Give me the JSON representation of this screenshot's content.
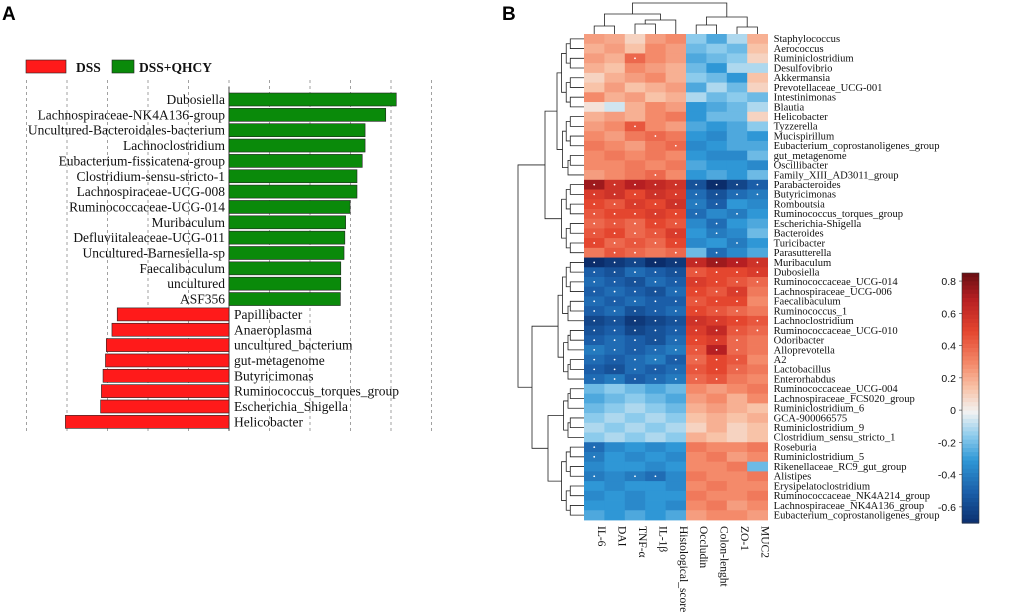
{
  "panels": {
    "a": "A",
    "b": "B"
  },
  "chart_data": [
    {
      "type": "bar",
      "orientation": "horizontal",
      "title": "",
      "legend": [
        {
          "name": "DSS",
          "color": "#ff1a1a"
        },
        {
          "name": "DSS+QHCY",
          "color": "#0a8a0a"
        }
      ],
      "xlim": [
        -4,
        4
      ],
      "categories": [
        "Dubosiella",
        "Lachnospiraceae-NK4A136-group",
        "Uncultured-Bacteroidales-bacterium",
        "Lachnoclostridium",
        "Eubacterium-fissicatena-group",
        "Clostridium-sensu-stricto-1",
        "Lachnospiraceae-UCG-008",
        "Ruminococcaceae-UCG-014",
        "Muribaculum",
        "Defluviitaleaceae-UCG-011",
        "Uncultured-Barnesiella-sp",
        "Faecalibaculum",
        "uncultured",
        "ASF356",
        "Papillibacter",
        "Anaeroplasma",
        "uncultured_bacterium",
        "gut-metagenome",
        "Butyricimonas",
        "Ruminococcus_torques_group",
        "Escherichia_Shigella",
        "Helicobacter"
      ],
      "values": [
        4.13,
        3.87,
        3.36,
        3.36,
        3.29,
        3.16,
        3.16,
        2.99,
        2.88,
        2.86,
        2.84,
        2.76,
        2.76,
        2.75,
        -2.76,
        -2.89,
        -3.03,
        -3.05,
        -3.11,
        -3.15,
        -3.17,
        -4.04
      ],
      "groups": [
        "DSS+QHCY",
        "DSS+QHCY",
        "DSS+QHCY",
        "DSS+QHCY",
        "DSS+QHCY",
        "DSS+QHCY",
        "DSS+QHCY",
        "DSS+QHCY",
        "DSS+QHCY",
        "DSS+QHCY",
        "DSS+QHCY",
        "DSS+QHCY",
        "DSS+QHCY",
        "DSS+QHCY",
        "DSS",
        "DSS",
        "DSS",
        "DSS",
        "DSS",
        "DSS",
        "DSS",
        "DSS"
      ]
    },
    {
      "type": "heatmap",
      "columns": [
        "IL-6",
        "DAI",
        "TNF-α",
        "IL-1β",
        "Histological_score",
        "Occludin",
        "Colon-lenght",
        "ZO-1",
        "MUC2"
      ],
      "rows": [
        "Staphylococcus",
        "Aerococcus",
        "Ruminiclostridium",
        "Desulfovibrio",
        "Akkermansia",
        "Prevotellaceae_UCG-001",
        "Intestinimonas",
        "Blautia",
        "Helicobacter",
        "Tyzzerella",
        "Mucispirillum",
        "Eubacterium_coprostanoligenes_group",
        "gut_metagenome",
        "Oscillibacter",
        "Family_XIII_AD3011_group",
        "Parabacteroides",
        "Butyricimonas",
        "Romboutsia",
        "Ruminococcus_torques_group",
        "Escherichia-Shigella",
        "Bacteroides",
        "Turicibacter",
        "Parasutterella",
        "Muribaculum",
        "Dubosiella",
        "Ruminococcaceae_UCG-014",
        "Lachnospiraceae_UCG-006",
        "Faecalibaculum",
        "Ruminococcus_1",
        "Lachnoclostridium",
        "Ruminococcaceae_UCG-010",
        "Odoribacter",
        "Alloprevotella",
        "A2",
        "Lactobacillus",
        "Enterorhabdus",
        "Ruminococcaceae_UCG-004",
        "Lachnospiraceae_FCS020_group",
        "Ruminiclostridium_6",
        "GCA-900066575",
        "Ruminiclostridium_9",
        "Clostridium_sensu_stricto_1",
        "Roseburia",
        "Ruminiclostridium_5",
        "Rikenellaceae_RC9_gut_group",
        "Alistipes",
        "Erysipelatoclostridium",
        "Ruminococcaceae_NK4A214_group",
        "Lachnospiraceae_NK4A136_group",
        "Eubacterium_coprostanoligenes_group"
      ],
      "values": [
        [
          0.25,
          0.22,
          0.1,
          0.25,
          0.3,
          -0.15,
          -0.25,
          -0.1,
          0.2
        ],
        [
          0.2,
          0.25,
          0.15,
          0.3,
          0.25,
          -0.2,
          -0.15,
          -0.2,
          0.15
        ],
        [
          0.25,
          0.2,
          0.4,
          0.3,
          0.25,
          -0.25,
          -0.2,
          -0.15,
          0.1
        ],
        [
          0.2,
          0.15,
          0.3,
          0.25,
          0.2,
          -0.2,
          -0.3,
          -0.1,
          -0.1
        ],
        [
          0.1,
          0.2,
          0.25,
          0.3,
          0.2,
          -0.15,
          -0.2,
          -0.3,
          0.15
        ],
        [
          0.15,
          0.25,
          0.15,
          0.2,
          0.25,
          -0.25,
          -0.1,
          -0.2,
          0.1
        ],
        [
          0.3,
          0.2,
          0.25,
          0.15,
          0.2,
          -0.1,
          -0.2,
          -0.15,
          -0.2
        ],
        [
          0.05,
          -0.05,
          0.2,
          0.3,
          0.25,
          -0.3,
          -0.25,
          -0.2,
          -0.1
        ],
        [
          0.2,
          0.25,
          0.2,
          0.3,
          0.35,
          -0.3,
          -0.2,
          -0.2,
          0.1
        ],
        [
          0.25,
          0.3,
          0.45,
          0.3,
          0.25,
          -0.25,
          -0.3,
          -0.25,
          -0.15
        ],
        [
          0.3,
          0.25,
          0.35,
          0.4,
          0.35,
          -0.3,
          -0.35,
          -0.25,
          -0.3
        ],
        [
          0.35,
          0.3,
          0.25,
          0.35,
          0.4,
          -0.35,
          -0.3,
          -0.25,
          -0.25
        ],
        [
          0.3,
          0.35,
          0.3,
          0.35,
          0.3,
          -0.3,
          -0.35,
          -0.35,
          -0.2
        ],
        [
          0.3,
          0.3,
          0.35,
          0.3,
          0.35,
          -0.25,
          -0.3,
          -0.3,
          -0.35
        ],
        [
          0.25,
          0.3,
          0.35,
          0.4,
          0.3,
          -0.3,
          -0.25,
          -0.3,
          -0.2
        ],
        [
          0.75,
          0.6,
          0.7,
          0.65,
          0.6,
          -0.55,
          -0.7,
          -0.6,
          -0.5
        ],
        [
          0.55,
          0.6,
          0.5,
          0.6,
          0.55,
          -0.45,
          -0.55,
          -0.45,
          -0.4
        ],
        [
          0.5,
          0.45,
          0.55,
          0.5,
          0.6,
          -0.4,
          -0.5,
          -0.3,
          -0.35
        ],
        [
          0.45,
          0.5,
          0.5,
          0.55,
          0.5,
          -0.45,
          -0.35,
          -0.4,
          -0.3
        ],
        [
          0.4,
          0.45,
          0.4,
          0.5,
          0.45,
          -0.35,
          -0.45,
          -0.3,
          -0.25
        ],
        [
          0.45,
          0.5,
          0.4,
          0.45,
          0.55,
          -0.3,
          -0.4,
          -0.35,
          -0.2
        ],
        [
          0.5,
          0.4,
          0.45,
          0.4,
          0.5,
          -0.35,
          -0.3,
          -0.4,
          -0.3
        ],
        [
          0.35,
          0.45,
          0.4,
          0.35,
          0.4,
          -0.2,
          -0.45,
          -0.35,
          -0.25
        ],
        [
          -0.7,
          -0.65,
          -0.6,
          -0.7,
          -0.65,
          0.65,
          0.75,
          0.7,
          0.6
        ],
        [
          -0.5,
          -0.55,
          -0.45,
          -0.5,
          -0.55,
          0.45,
          0.5,
          0.5,
          0.55
        ],
        [
          -0.45,
          -0.5,
          -0.55,
          -0.45,
          -0.5,
          0.55,
          0.5,
          0.45,
          0.4
        ],
        [
          -0.5,
          -0.45,
          -0.5,
          -0.55,
          -0.45,
          0.5,
          0.45,
          0.55,
          0.35
        ],
        [
          -0.45,
          -0.5,
          -0.45,
          -0.5,
          -0.5,
          0.45,
          0.5,
          0.5,
          0.3
        ],
        [
          -0.5,
          -0.45,
          -0.55,
          -0.5,
          -0.45,
          0.5,
          0.45,
          0.4,
          0.35
        ],
        [
          -0.6,
          -0.55,
          -0.65,
          -0.6,
          -0.55,
          0.6,
          0.55,
          0.5,
          0.45
        ],
        [
          -0.55,
          -0.5,
          -0.6,
          -0.55,
          -0.5,
          0.55,
          0.65,
          0.45,
          0.4
        ],
        [
          -0.5,
          -0.45,
          -0.5,
          -0.55,
          -0.45,
          0.5,
          0.55,
          0.4,
          0.35
        ],
        [
          -0.4,
          -0.45,
          -0.5,
          -0.45,
          -0.4,
          0.45,
          0.7,
          0.4,
          0.35
        ],
        [
          -0.45,
          -0.5,
          -0.45,
          -0.4,
          -0.5,
          0.4,
          0.5,
          0.45,
          0.3
        ],
        [
          -0.5,
          -0.55,
          -0.45,
          -0.5,
          -0.45,
          0.45,
          0.5,
          0.4,
          0.35
        ],
        [
          -0.45,
          -0.4,
          -0.5,
          -0.45,
          -0.4,
          0.4,
          0.45,
          0.35,
          0.3
        ],
        [
          -0.2,
          -0.15,
          -0.2,
          -0.25,
          -0.2,
          0.3,
          0.25,
          0.3,
          0.35
        ],
        [
          -0.25,
          -0.2,
          -0.15,
          -0.2,
          -0.25,
          0.25,
          0.3,
          0.2,
          0.3
        ],
        [
          -0.2,
          -0.15,
          -0.1,
          -0.15,
          -0.2,
          0.2,
          0.25,
          0.2,
          0.15
        ],
        [
          -0.15,
          -0.1,
          -0.15,
          -0.1,
          -0.15,
          0.15,
          0.2,
          0.15,
          0.2
        ],
        [
          -0.1,
          -0.15,
          -0.1,
          -0.15,
          -0.1,
          0.1,
          0.2,
          0.1,
          0.15
        ],
        [
          -0.15,
          -0.1,
          -0.15,
          -0.1,
          -0.15,
          0.2,
          0.15,
          0.1,
          0.15
        ],
        [
          -0.45,
          -0.35,
          -0.3,
          -0.35,
          -0.3,
          0.35,
          0.3,
          0.3,
          0.35
        ],
        [
          -0.4,
          -0.3,
          -0.35,
          -0.3,
          -0.35,
          0.3,
          0.35,
          0.25,
          0.3
        ],
        [
          -0.35,
          -0.3,
          -0.3,
          -0.35,
          -0.3,
          0.3,
          0.3,
          0.35,
          -0.2
        ],
        [
          -0.4,
          -0.35,
          -0.4,
          -0.45,
          -0.35,
          0.35,
          0.3,
          0.3,
          0.35
        ],
        [
          -0.3,
          -0.35,
          -0.3,
          -0.3,
          -0.35,
          0.3,
          0.35,
          0.3,
          0.3
        ],
        [
          -0.35,
          -0.3,
          -0.35,
          -0.3,
          -0.3,
          0.35,
          0.3,
          0.3,
          0.35
        ],
        [
          -0.3,
          -0.3,
          -0.35,
          -0.3,
          -0.35,
          0.3,
          0.35,
          0.25,
          0.3
        ],
        [
          -0.25,
          -0.3,
          -0.25,
          -0.3,
          -0.25,
          0.25,
          0.3,
          0.3,
          0.25
        ]
      ],
      "colorbar": {
        "ticks": [
          "0.8",
          "0.6",
          "0.4",
          "0.2",
          "0",
          "-0.2",
          "-0.4",
          "-0.6"
        ],
        "range": [
          -0.7,
          0.85
        ]
      },
      "colors": {
        "low": "#0b2d6b",
        "mid": "#f4f4f4",
        "high": "#6e0f14"
      }
    }
  ]
}
